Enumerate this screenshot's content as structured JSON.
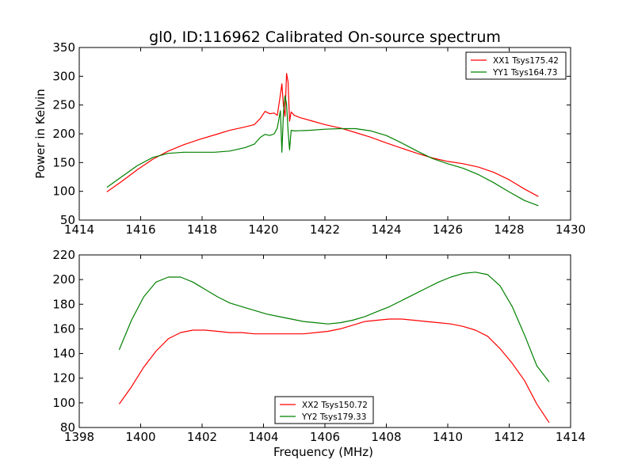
{
  "figure_title": "gl0, ID:116962 Calibrated On-source spectrum",
  "chart_data": [
    {
      "type": "line",
      "title": "gl0, ID:116962 Calibrated On-source spectrum",
      "xlabel": "",
      "ylabel": "Power in Kelvin",
      "xlim": [
        1414,
        1430
      ],
      "ylim": [
        50,
        350
      ],
      "xticks": [
        "1414",
        "1416",
        "1418",
        "1420",
        "1422",
        "1424",
        "1426",
        "1428",
        "1430"
      ],
      "yticks": [
        "50",
        "100",
        "150",
        "200",
        "250",
        "300",
        "350"
      ],
      "grid": false,
      "legend_position": "top-right",
      "series": [
        {
          "name": "XX1 Tsys175.42",
          "color": "#ff0000",
          "points": [
            [
              1414.9,
              99
            ],
            [
              1415.4,
              118
            ],
            [
              1415.9,
              138
            ],
            [
              1416.4,
              156
            ],
            [
              1416.9,
              170
            ],
            [
              1417.4,
              181
            ],
            [
              1417.9,
              190
            ],
            [
              1418.4,
              198
            ],
            [
              1418.9,
              206
            ],
            [
              1419.4,
              212
            ],
            [
              1419.7,
              216
            ],
            [
              1419.9,
              227
            ],
            [
              1420.05,
              239
            ],
            [
              1420.2,
              235
            ],
            [
              1420.35,
              236
            ],
            [
              1420.45,
              232
            ],
            [
              1420.55,
              268
            ],
            [
              1420.6,
              287
            ],
            [
              1420.65,
              248
            ],
            [
              1420.7,
              230
            ],
            [
              1420.75,
              305
            ],
            [
              1420.8,
              290
            ],
            [
              1420.85,
              222
            ],
            [
              1420.9,
              238
            ],
            [
              1421.0,
              232
            ],
            [
              1421.2,
              228
            ],
            [
              1421.6,
              222
            ],
            [
              1422.0,
              216
            ],
            [
              1422.5,
              210
            ],
            [
              1423.0,
              202
            ],
            [
              1423.5,
              194
            ],
            [
              1424.0,
              184
            ],
            [
              1424.5,
              175
            ],
            [
              1425.0,
              166
            ],
            [
              1425.5,
              158
            ],
            [
              1426.0,
              152
            ],
            [
              1426.5,
              148
            ],
            [
              1427.0,
              142
            ],
            [
              1427.5,
              133
            ],
            [
              1428.0,
              120
            ],
            [
              1428.5,
              104
            ],
            [
              1428.95,
              91
            ]
          ]
        },
        {
          "name": "YY1 Tsys164.73",
          "color": "#008000",
          "points": [
            [
              1414.9,
              107
            ],
            [
              1415.4,
              126
            ],
            [
              1415.9,
              145
            ],
            [
              1416.4,
              159
            ],
            [
              1416.9,
              166
            ],
            [
              1417.4,
              168
            ],
            [
              1417.9,
              168
            ],
            [
              1418.4,
              168
            ],
            [
              1418.9,
              170
            ],
            [
              1419.4,
              176
            ],
            [
              1419.7,
              182
            ],
            [
              1419.9,
              194
            ],
            [
              1420.05,
              199
            ],
            [
              1420.2,
              197
            ],
            [
              1420.35,
              200
            ],
            [
              1420.45,
              210
            ],
            [
              1420.55,
              240
            ],
            [
              1420.6,
              168
            ],
            [
              1420.65,
              238
            ],
            [
              1420.7,
              266
            ],
            [
              1420.75,
              252
            ],
            [
              1420.8,
              205
            ],
            [
              1420.85,
              172
            ],
            [
              1420.9,
              206
            ],
            [
              1421.0,
              205
            ],
            [
              1421.5,
              206
            ],
            [
              1422.0,
              208
            ],
            [
              1422.5,
              209
            ],
            [
              1423.0,
              209
            ],
            [
              1423.5,
              205
            ],
            [
              1424.0,
              197
            ],
            [
              1424.5,
              184
            ],
            [
              1425.0,
              170
            ],
            [
              1425.5,
              157
            ],
            [
              1426.0,
              148
            ],
            [
              1426.5,
              140
            ],
            [
              1427.0,
              129
            ],
            [
              1427.5,
              115
            ],
            [
              1428.0,
              99
            ],
            [
              1428.5,
              84
            ],
            [
              1428.95,
              75
            ]
          ]
        }
      ]
    },
    {
      "type": "line",
      "title": "",
      "xlabel": "Frequency (MHz)",
      "ylabel": "",
      "xlim": [
        1398,
        1414
      ],
      "ylim": [
        80,
        220
      ],
      "xticks": [
        "1398",
        "1400",
        "1402",
        "1404",
        "1406",
        "1408",
        "1410",
        "1412",
        "1414"
      ],
      "yticks": [
        "80",
        "100",
        "120",
        "140",
        "160",
        "180",
        "200",
        "220"
      ],
      "grid": false,
      "legend_position": "bottom-center",
      "series": [
        {
          "name": "XX2 Tsys150.72",
          "color": "#ff0000",
          "points": [
            [
              1399.3,
              99
            ],
            [
              1399.7,
              113
            ],
            [
              1400.1,
              129
            ],
            [
              1400.5,
              142
            ],
            [
              1400.9,
              152
            ],
            [
              1401.3,
              157
            ],
            [
              1401.7,
              159
            ],
            [
              1402.1,
              159
            ],
            [
              1402.5,
              158
            ],
            [
              1402.9,
              157
            ],
            [
              1403.3,
              157
            ],
            [
              1403.7,
              156
            ],
            [
              1404.1,
              156
            ],
            [
              1404.5,
              156
            ],
            [
              1404.9,
              156
            ],
            [
              1405.3,
              156
            ],
            [
              1405.7,
              157
            ],
            [
              1406.1,
              158
            ],
            [
              1406.5,
              160
            ],
            [
              1406.9,
              163
            ],
            [
              1407.3,
              166
            ],
            [
              1407.7,
              167
            ],
            [
              1408.1,
              168
            ],
            [
              1408.5,
              168
            ],
            [
              1408.9,
              167
            ],
            [
              1409.3,
              166
            ],
            [
              1409.7,
              165
            ],
            [
              1410.1,
              164
            ],
            [
              1410.5,
              162
            ],
            [
              1410.9,
              159
            ],
            [
              1411.3,
              154
            ],
            [
              1411.7,
              144
            ],
            [
              1412.1,
              132
            ],
            [
              1412.5,
              118
            ],
            [
              1412.9,
              99
            ],
            [
              1413.3,
              84
            ]
          ]
        },
        {
          "name": "YY2 Tsys179.33",
          "color": "#008000",
          "points": [
            [
              1399.3,
              143
            ],
            [
              1399.7,
              167
            ],
            [
              1400.1,
              186
            ],
            [
              1400.5,
              198
            ],
            [
              1400.9,
              202
            ],
            [
              1401.3,
              202
            ],
            [
              1401.7,
              198
            ],
            [
              1402.1,
              192
            ],
            [
              1402.5,
              186
            ],
            [
              1402.9,
              181
            ],
            [
              1403.3,
              178
            ],
            [
              1403.7,
              175
            ],
            [
              1404.1,
              172
            ],
            [
              1404.5,
              170
            ],
            [
              1404.9,
              168
            ],
            [
              1405.3,
              166
            ],
            [
              1405.7,
              165
            ],
            [
              1406.1,
              164
            ],
            [
              1406.5,
              165
            ],
            [
              1406.9,
              167
            ],
            [
              1407.3,
              170
            ],
            [
              1407.7,
              174
            ],
            [
              1408.1,
              178
            ],
            [
              1408.5,
              183
            ],
            [
              1408.9,
              188
            ],
            [
              1409.3,
              193
            ],
            [
              1409.7,
              198
            ],
            [
              1410.1,
              202
            ],
            [
              1410.5,
              205
            ],
            [
              1410.9,
              206
            ],
            [
              1411.3,
              204
            ],
            [
              1411.7,
              195
            ],
            [
              1412.1,
              178
            ],
            [
              1412.5,
              155
            ],
            [
              1412.9,
              130
            ],
            [
              1413.3,
              117
            ]
          ]
        }
      ]
    }
  ]
}
